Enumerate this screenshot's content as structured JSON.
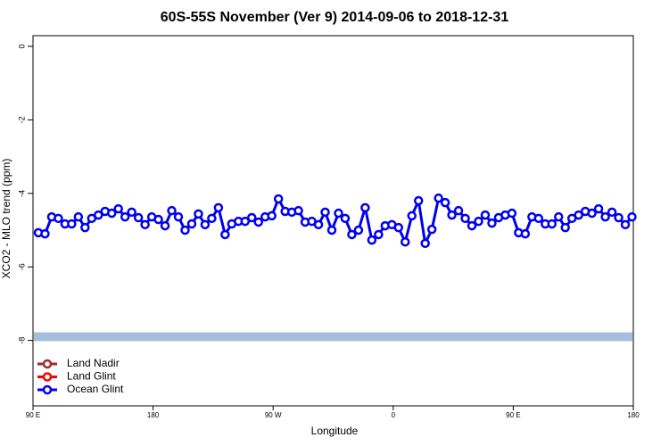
{
  "chart_data": {
    "type": "line",
    "title": "60S-55S November (Ver 9)   2014-09-06 to 2018-12-31",
    "x_label": "Longitude",
    "y_label": "XCO2 - MLO trend (ppm)",
    "xlim": [
      90,
      540
    ],
    "ylim": [
      -9.78,
      0.29
    ],
    "xticks": [
      {
        "value": 90,
        "label": "90 E"
      },
      180,
      {
        "value": 270,
        "label": "90 W"
      },
      {
        "value": 360,
        "label": "0"
      },
      {
        "value": 450,
        "label": "90 E"
      },
      {
        "value": 540,
        "label": "180"
      }
    ],
    "yticks": [
      0,
      -2,
      -4,
      -6,
      -8
    ],
    "band": {
      "color": "#a6bddb",
      "values": [
        -7.78,
        -8.02
      ]
    },
    "legend": "bottom-left",
    "x": [
      94,
      99,
      104,
      109,
      114,
      119,
      124,
      129,
      134,
      139,
      144,
      149,
      154,
      159,
      164,
      169,
      174,
      179,
      184,
      189,
      194,
      199,
      204,
      209,
      214,
      219,
      224,
      229,
      234,
      239,
      244,
      249,
      254,
      259,
      264,
      269,
      274,
      279,
      284,
      289,
      294,
      299,
      304,
      309,
      314,
      319,
      324,
      329,
      334,
      339,
      344,
      349,
      354,
      359,
      364,
      369,
      374,
      379,
      384,
      389,
      394,
      399,
      404,
      409,
      414,
      419,
      424,
      429,
      434,
      439,
      444,
      449,
      454,
      459,
      464,
      469,
      474,
      479,
      484,
      489,
      494,
      499,
      504,
      509,
      514,
      519,
      524,
      529,
      534,
      539
    ],
    "series": [
      {
        "name": "Land Nadir",
        "color": "#a52a2a",
        "values": [
          null,
          null,
          null,
          null,
          null,
          null,
          null,
          null,
          null,
          null,
          null,
          null,
          null,
          null,
          null,
          null,
          null,
          null,
          null,
          null,
          null,
          null,
          null,
          null,
          null,
          null,
          null,
          null,
          null,
          null,
          null,
          null,
          null,
          null,
          null,
          null,
          null,
          null,
          null,
          null,
          null,
          null,
          null,
          null,
          null,
          null,
          null,
          null,
          null,
          null,
          null,
          null,
          null,
          null,
          null,
          null,
          null,
          null,
          null,
          null,
          null,
          null,
          null,
          null,
          null,
          null,
          null,
          null,
          null,
          null,
          null,
          null,
          null,
          null,
          null,
          null,
          null,
          null,
          null,
          null,
          null,
          null,
          null,
          null,
          null,
          null,
          null,
          null,
          null,
          null
        ]
      },
      {
        "name": "Land Glint",
        "color": "#ff0000",
        "values": [
          null,
          null,
          null,
          null,
          null,
          null,
          null,
          null,
          null,
          null,
          null,
          null,
          null,
          null,
          null,
          null,
          null,
          null,
          null,
          null,
          null,
          null,
          null,
          null,
          null,
          null,
          null,
          null,
          null,
          null,
          null,
          null,
          null,
          null,
          null,
          null,
          null,
          null,
          null,
          null,
          null,
          null,
          null,
          null,
          null,
          null,
          null,
          null,
          null,
          null,
          null,
          null,
          null,
          null,
          null,
          null,
          null,
          null,
          null,
          null,
          null,
          null,
          null,
          null,
          null,
          null,
          null,
          null,
          null,
          null,
          null,
          null,
          null,
          null,
          null,
          null,
          null,
          null,
          null,
          null,
          null,
          null,
          null,
          null,
          null,
          null,
          null,
          null,
          null,
          null
        ]
      },
      {
        "name": "Ocean Glint",
        "color": "#0000ee",
        "values": [
          -5.07,
          -5.1,
          -4.64,
          -4.68,
          -4.83,
          -4.83,
          -4.64,
          -4.93,
          -4.68,
          -4.59,
          -4.49,
          -4.54,
          -4.42,
          -4.64,
          -4.51,
          -4.66,
          -4.85,
          -4.64,
          -4.71,
          -4.88,
          -4.47,
          -4.64,
          -5.0,
          -4.83,
          -4.56,
          -4.85,
          -4.68,
          -4.39,
          -5.12,
          -4.83,
          -4.76,
          -4.76,
          -4.66,
          -4.78,
          -4.64,
          -4.61,
          -4.15,
          -4.49,
          -4.51,
          -4.47,
          -4.78,
          -4.76,
          -4.85,
          -4.51,
          -5.0,
          -4.54,
          -4.68,
          -5.12,
          -5.0,
          -4.39,
          -5.27,
          -5.12,
          -4.88,
          -4.85,
          -4.93,
          -5.32,
          -4.61,
          -4.2,
          -5.36,
          -4.98,
          -4.13,
          -4.25,
          -4.59,
          -4.47,
          -4.68,
          -4.88,
          -4.76,
          -4.59,
          -4.81,
          -4.66,
          -4.59,
          -4.54,
          -5.07,
          -5.1,
          -4.64,
          -4.68,
          -4.83,
          -4.83,
          -4.64,
          -4.93,
          -4.68,
          -4.59,
          -4.49,
          -4.54,
          -4.42,
          -4.64,
          -4.51,
          -4.66,
          -4.85,
          -4.64
        ]
      }
    ]
  }
}
